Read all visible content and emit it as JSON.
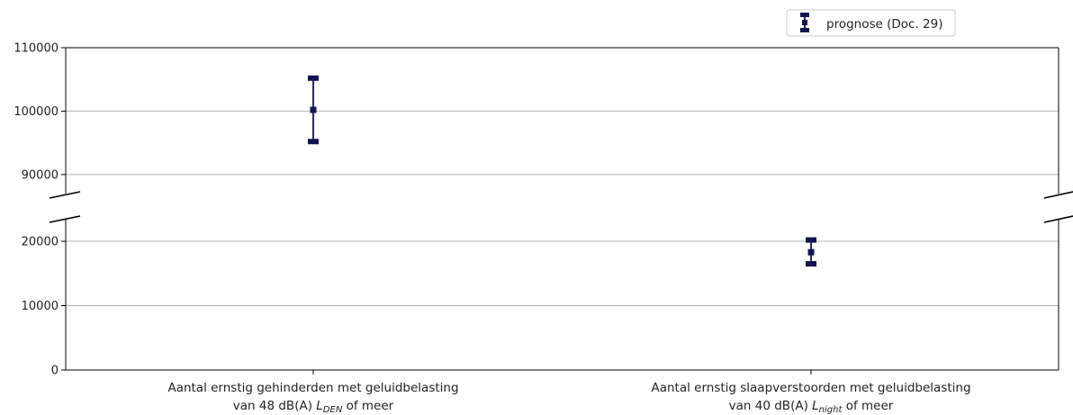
{
  "chart_data": {
    "type": "errorbar",
    "broken_axis": true,
    "grid": "horizontal",
    "legend_position": "top-right",
    "color": "#14134f",
    "upper": {
      "ylim": [
        87000,
        110000
      ],
      "ticks": [
        {
          "v": 90000,
          "label": "90000"
        },
        {
          "v": 100000,
          "label": "100000"
        },
        {
          "v": 110000,
          "label": "110000"
        }
      ]
    },
    "lower": {
      "ylim": [
        0,
        23500
      ],
      "ticks": [
        {
          "v": 0,
          "label": "0"
        },
        {
          "v": 10000,
          "label": "10000"
        },
        {
          "v": 20000,
          "label": "20000"
        }
      ]
    },
    "categories": [
      {
        "line1": "Aantal ernstig gehinderden met geluidbelasting",
        "line2_pre": "van 48 dB(A) ",
        "line2_L": "L",
        "line2_sub": "DEN",
        "line2_post": " of meer"
      },
      {
        "line1": "Aantal ernstig slaapverstoorden met geluidbelasting",
        "line2_pre": "van 40 dB(A) ",
        "line2_L": "L",
        "line2_sub": "night",
        "line2_post": " of meer"
      }
    ],
    "series": [
      {
        "name": "prognose (Doc. 29)",
        "points": [
          {
            "category": 0,
            "value": 100200,
            "low": 95200,
            "high": 105200
          },
          {
            "category": 1,
            "value": 18300,
            "low": 16500,
            "high": 20200
          }
        ]
      }
    ]
  }
}
